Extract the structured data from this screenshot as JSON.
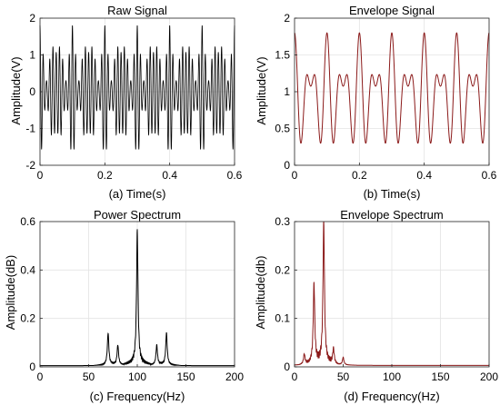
{
  "chart_data": [
    {
      "id": "raw",
      "type": "line",
      "title": "Raw Signal",
      "xlabel": "(a) Time(s)",
      "ylabel": "Amplitude(V)",
      "xlim": [
        0,
        0.6
      ],
      "ylim": [
        -2,
        2
      ],
      "xticks": [
        0,
        0.2,
        0.4,
        0.6
      ],
      "yticks": [
        -2,
        -1,
        0,
        1,
        2
      ],
      "xtick_labels": [
        "0",
        "0.2",
        "0.4",
        "0.6"
      ],
      "ytick_labels": [
        "-2",
        "-1",
        "0",
        "1",
        "2"
      ],
      "grid": true,
      "line_color": "#000000",
      "series": [
        {
          "model": "carrier_am",
          "carrier_hz": 100,
          "components": [
            {
              "freq_hz": 0,
              "amp": 1.0
            },
            {
              "freq_hz": 20,
              "amp": 0.45
            },
            {
              "freq_hz": 30,
              "amp": 0.35
            }
          ],
          "peak_amplitude": 1.8,
          "min_envelope": 0.3
        }
      ]
    },
    {
      "id": "env",
      "type": "line",
      "title": "Envelope Signal",
      "xlabel": "(b) Time(s)",
      "ylabel": "Amplitude(V)",
      "xlim": [
        0,
        0.6
      ],
      "ylim": [
        0,
        2
      ],
      "xticks": [
        0,
        0.2,
        0.4,
        0.6
      ],
      "yticks": [
        0,
        0.5,
        1,
        1.5,
        2
      ],
      "xtick_labels": [
        "0",
        "0.2",
        "0.4",
        "0.6"
      ],
      "ytick_labels": [
        "0",
        "0.5",
        "1",
        "1.5",
        "2"
      ],
      "grid": true,
      "line_color": "#8B1A1A",
      "series": [
        {
          "model": "envelope",
          "components": [
            {
              "freq_hz": 0,
              "amp": 1.0
            },
            {
              "freq_hz": 20,
              "amp": 0.45
            },
            {
              "freq_hz": 30,
              "amp": 0.35
            }
          ],
          "peak_amplitude": 1.8,
          "min_value": 0.3
        }
      ]
    },
    {
      "id": "power",
      "type": "line",
      "title": "Power Spectrum",
      "xlabel": "(c) Frequency(Hz)",
      "ylabel": "Amplitude(dB)",
      "xlim": [
        0,
        200
      ],
      "ylim": [
        0,
        0.6
      ],
      "xticks": [
        0,
        50,
        100,
        150,
        200
      ],
      "yticks": [
        0,
        0.2,
        0.4,
        0.6
      ],
      "xtick_labels": [
        "0",
        "50",
        "100",
        "150",
        "200"
      ],
      "ytick_labels": [
        "0",
        "0.2",
        "0.4",
        "0.6"
      ],
      "grid": true,
      "line_color": "#000000",
      "series": [
        {
          "peaks": [
            {
              "x": 70,
              "y": 0.13
            },
            {
              "x": 80,
              "y": 0.08
            },
            {
              "x": 100,
              "y": 0.54
            },
            {
              "x": 120,
              "y": 0.08
            },
            {
              "x": 130,
              "y": 0.13
            }
          ],
          "baseline": 0.005
        }
      ]
    },
    {
      "id": "envspec",
      "type": "line",
      "title": "Envelope Spectrum",
      "xlabel": "(d) Frequency(Hz)",
      "ylabel": "Amplitude(db)",
      "xlim": [
        0,
        200
      ],
      "ylim": [
        0,
        0.3
      ],
      "xticks": [
        0,
        50,
        100,
        150,
        200
      ],
      "yticks": [
        0,
        0.1,
        0.2,
        0.3
      ],
      "xtick_labels": [
        "0",
        "50",
        "100",
        "150",
        "200"
      ],
      "ytick_labels": [
        "0",
        "0.1",
        "0.2",
        "0.3"
      ],
      "grid": true,
      "line_color": "#8B1A1A",
      "series": [
        {
          "peaks": [
            {
              "x": 10,
              "y": 0.02
            },
            {
              "x": 20,
              "y": 0.16
            },
            {
              "x": 30,
              "y": 0.285
            },
            {
              "x": 40,
              "y": 0.03
            },
            {
              "x": 50,
              "y": 0.015
            }
          ],
          "baseline": 0.003
        }
      ]
    }
  ]
}
